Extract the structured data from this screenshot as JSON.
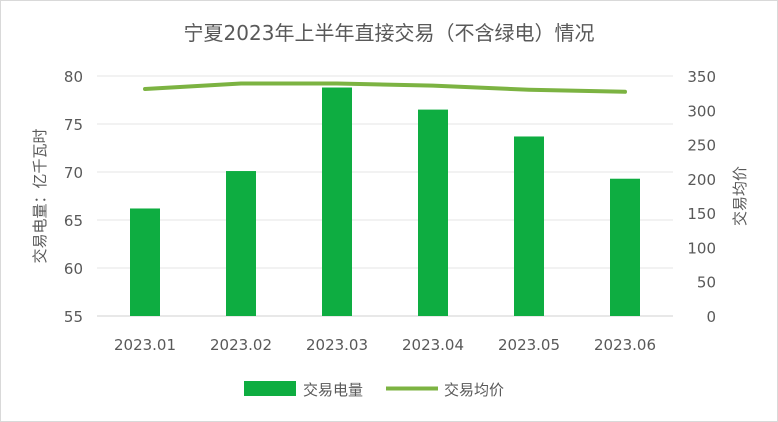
{
  "chart_data": {
    "type": "bar+line",
    "title": "宁夏2023年上半年直接交易（不含绿电）情况",
    "categories": [
      "2023.01",
      "2023.02",
      "2023.03",
      "2023.04",
      "2023.05",
      "2023.06"
    ],
    "series": [
      {
        "name": "交易电量",
        "type": "bar",
        "axis": "left",
        "values": [
          66.2,
          70.1,
          78.8,
          76.5,
          73.7,
          69.3
        ],
        "color": "#0ead41"
      },
      {
        "name": "交易均价",
        "type": "line",
        "axis": "right",
        "values": [
          331,
          339,
          339,
          336,
          330,
          327
        ],
        "color": "#7cb342"
      }
    ],
    "ylabel": "交易电量：亿千瓦时",
    "y2label": "交易均价",
    "ylim": [
      55,
      80
    ],
    "y2lim": [
      0,
      350
    ],
    "yticks": [
      "55",
      "60",
      "65",
      "70",
      "75",
      "80"
    ],
    "y2ticks": [
      "0",
      "50",
      "100",
      "150",
      "200",
      "250",
      "300",
      "350"
    ],
    "grid": true,
    "legend": "bottom"
  }
}
